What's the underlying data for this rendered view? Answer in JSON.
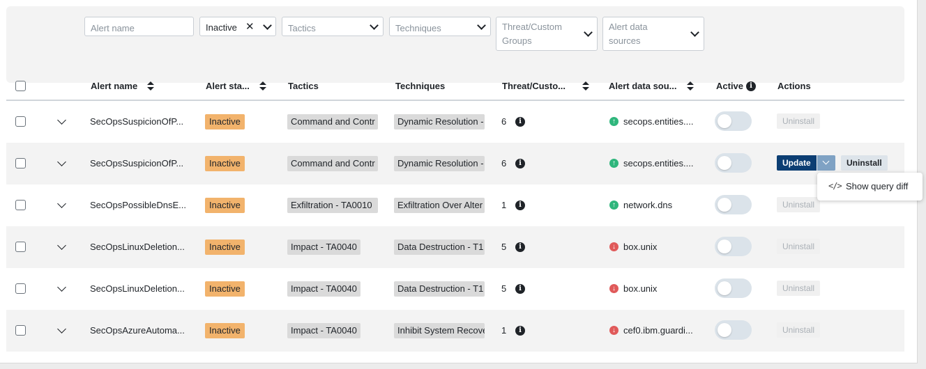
{
  "filters": {
    "alert_name_placeholder": "Alert name",
    "status_value": "Inactive",
    "tactics_placeholder": "Tactics",
    "techniques_placeholder": "Techniques",
    "threat_line1": "Threat/Custom",
    "threat_line2": "Groups",
    "sources_line1": "Alert data",
    "sources_line2": "sources"
  },
  "columns": {
    "alert_name": "Alert name",
    "alert_status": "Alert sta...",
    "tactics": "Tactics",
    "techniques": "Techniques",
    "threat": "Threat/Custo...",
    "sources": "Alert data sou...",
    "active": "Active",
    "actions": "Actions"
  },
  "rows": [
    {
      "name": "SecOpsSuspicionOfP...",
      "status": "Inactive",
      "tactic": "Command and Contr",
      "technique": "Dynamic Resolution -",
      "count": "6",
      "source": "secops.entities....",
      "source_dir": "up",
      "action": "Uninstall"
    },
    {
      "name": "SecOpsSuspicionOfP...",
      "status": "Inactive",
      "tactic": "Command and Contr",
      "technique": "Dynamic Resolution -",
      "count": "6",
      "source": "secops.entities....",
      "source_dir": "up",
      "update": "Update",
      "action": "Uninstall"
    },
    {
      "name": "SecOpsPossibleDnsE...",
      "status": "Inactive",
      "tactic": "Exfiltration - TA0010",
      "technique": "Exfiltration Over Alter",
      "count": "1",
      "source": "network.dns",
      "source_dir": "up",
      "action": "Uninstall"
    },
    {
      "name": "SecOpsLinuxDeletion...",
      "status": "Inactive",
      "tactic": "Impact - TA0040",
      "technique": "Data Destruction - T1",
      "count": "5",
      "source": "box.unix",
      "source_dir": "down",
      "action": "Uninstall"
    },
    {
      "name": "SecOpsLinuxDeletion...",
      "status": "Inactive",
      "tactic": "Impact - TA0040",
      "technique": "Data Destruction - T1",
      "count": "5",
      "source": "box.unix",
      "source_dir": "down",
      "action": "Uninstall"
    },
    {
      "name": "SecOpsAzureAutoma...",
      "status": "Inactive",
      "tactic": "Impact - TA0040",
      "technique": "Inhibit System Recove",
      "count": "1",
      "source": "cef0.ibm.guardi...",
      "source_dir": "down",
      "action": "Uninstall"
    }
  ],
  "popup": {
    "label": "Show query diff",
    "icon": "code-icon"
  },
  "colors": {
    "status_inactive": "#f2b36c",
    "update_button": "#0c3e73",
    "source_up": "#2fb67c",
    "source_down": "#e05a5a"
  }
}
